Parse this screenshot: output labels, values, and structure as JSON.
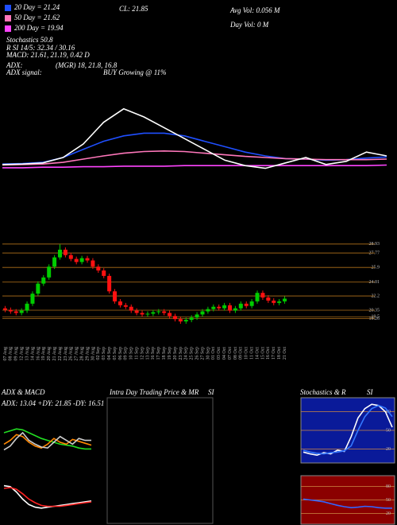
{
  "chart_data": [
    {
      "type": "line",
      "annotations": [
        "CL: 21.85",
        "Avg Vol: 0.056  M",
        "Day Vol: 0  M",
        "Stochastics 50.8",
        "R   SI 14/5: 32.34 / 30.16",
        "MACD: 21.61, 21.19, 0.42  D",
        "ADX:",
        "(MGR) 18, 21.8, 16.8",
        "ADX  signal:",
        "BUY Growing @ 11%"
      ],
      "ylim": [
        19,
        31.5
      ],
      "series": [
        {
          "name": "20 Day = 21.24",
          "color": "#1f4fff",
          "values": [
            20.3,
            20.4,
            20.6,
            21.5,
            23,
            24.5,
            25.5,
            26,
            26,
            25.5,
            24.5,
            23.5,
            22.5,
            21.8,
            21.3,
            21.2,
            21,
            21.1,
            21.4,
            21.6
          ]
        },
        {
          "name": "50 Day = 21.62",
          "color": "#ff77bb",
          "values": [
            20.1,
            20.2,
            20.3,
            20.6,
            21.2,
            21.8,
            22.3,
            22.6,
            22.7,
            22.6,
            22.3,
            22,
            21.7,
            21.5,
            21.3,
            21.2,
            21.1,
            21.1,
            21.1,
            21.2
          ]
        },
        {
          "name": "200 Day = 19.94",
          "color": "#ff44ff",
          "values": [
            19.6,
            19.6,
            19.7,
            19.7,
            19.8,
            19.8,
            19.9,
            19.9,
            19.9,
            20,
            20,
            20,
            20,
            20,
            20,
            20,
            20,
            20,
            20,
            20.1
          ]
        },
        {
          "color": "#ffffff",
          "values": [
            20.2,
            20.3,
            20.5,
            21.5,
            24,
            28,
            30.5,
            29,
            27,
            25,
            23,
            21,
            20,
            19.5,
            20.5,
            21.5,
            20.2,
            20.8,
            22.5,
            21.8
          ]
        }
      ]
    },
    {
      "type": "candlestick",
      "categories": [
        "07 Aug",
        "08 Aug",
        "09 Aug",
        "12 Aug",
        "13 Aug",
        "14 Aug",
        "16 Aug",
        "19 Aug",
        "20 Aug",
        "21 Aug",
        "22 Aug",
        "23 Aug",
        "26 Aug",
        "27 Aug",
        "28 Aug",
        "29 Aug",
        "30 Aug",
        "02 Sep",
        "03 Sep",
        "04 Sep",
        "05 Sep",
        "06 Sep",
        "09 Sep",
        "10 Sep",
        "11 Sep",
        "12 Sep",
        "13 Sep",
        "16 Sep",
        "17 Sep",
        "18 Sep",
        "19 Sep",
        "20 Sep",
        "23 Sep",
        "24 Sep",
        "25 Sep",
        "26 Sep",
        "27 Sep",
        "30 Sep",
        "01 Oct",
        "03 Oct",
        "04 Oct",
        "07 Oct",
        "08 Oct",
        "09 Oct",
        "10 Oct",
        "11 Oct",
        "14 Oct",
        "15 Oct",
        "16 Oct",
        "17 Oct",
        "18 Oct",
        "21 Oct"
      ],
      "open": [
        20.6,
        20.4,
        20.2,
        20.0,
        20.3,
        21.2,
        22.5,
        23.8,
        24.6,
        26.0,
        27.2,
        28.2,
        27.5,
        27.0,
        26.6,
        27.1,
        26.8,
        26.0,
        25.5,
        24.8,
        22.8,
        21.5,
        21.0,
        20.8,
        20.3,
        20.0,
        19.8,
        19.9,
        20.1,
        20.2,
        20.0,
        19.6,
        19.2,
        18.9,
        19.1,
        19.4,
        19.8,
        20.2,
        20.5,
        20.8,
        20.6,
        21.0,
        20.3,
        20.6,
        21.2,
        20.9,
        21.5,
        22.6,
        22.0,
        21.6,
        21.3,
        21.5
      ],
      "high": [
        20.9,
        20.7,
        20.5,
        20.6,
        21.5,
        22.8,
        24.1,
        24.9,
        26.3,
        27.5,
        28.9,
        28.5,
        27.8,
        27.3,
        27.4,
        27.4,
        27.1,
        26.3,
        25.8,
        25.1,
        23.1,
        21.8,
        21.3,
        21.1,
        20.6,
        20.3,
        20.2,
        20.4,
        20.5,
        20.5,
        20.3,
        19.9,
        19.5,
        19.4,
        19.7,
        20.1,
        20.5,
        20.8,
        21.1,
        21.1,
        21.3,
        21.3,
        20.9,
        21.5,
        21.5,
        21.8,
        22.9,
        22.9,
        22.3,
        21.9,
        21.8,
        22.15
      ],
      "low": [
        20.1,
        19.9,
        19.7,
        19.7,
        20.0,
        20.9,
        22.2,
        23.5,
        24.3,
        25.7,
        26.9,
        27.2,
        26.7,
        26.3,
        26.3,
        26.5,
        25.7,
        25.2,
        24.5,
        22.5,
        21.2,
        20.7,
        20.5,
        20.0,
        19.7,
        19.5,
        19.5,
        19.6,
        19.8,
        19.7,
        19.3,
        18.9,
        18.6,
        18.6,
        18.8,
        19.1,
        19.5,
        19.9,
        20.2,
        20.3,
        20.3,
        20.0,
        20.0,
        20.3,
        20.6,
        20.6,
        21.2,
        21.7,
        21.3,
        21.0,
        21.0,
        21.2
      ],
      "close": [
        20.4,
        20.2,
        20.0,
        20.3,
        21.2,
        22.5,
        23.8,
        24.6,
        26.0,
        27.2,
        28.2,
        27.5,
        27.0,
        26.6,
        27.1,
        26.8,
        26.0,
        25.5,
        24.8,
        22.8,
        21.5,
        21.0,
        20.8,
        20.3,
        20.0,
        19.8,
        19.9,
        20.1,
        20.2,
        20.0,
        19.6,
        19.2,
        18.9,
        19.1,
        19.4,
        19.8,
        20.2,
        20.5,
        20.8,
        20.6,
        21.0,
        20.3,
        20.6,
        21.2,
        20.9,
        21.5,
        22.6,
        22.0,
        21.6,
        21.3,
        21.5,
        21.85
      ],
      "up_color": "#00cc00",
      "down_color": "#ff1111",
      "level_color": "#b0701a",
      "ylim": [
        16.23,
        29.63
      ],
      "yticks": [
        28.93,
        27.77,
        25.9,
        24.01,
        22.2,
        20.35,
        19.5,
        19.26
      ]
    },
    {
      "type": "line",
      "title": "ADX  & MACD",
      "subtitle": "ADX: 13.04  +DY: 21.85  -DY: 16.51",
      "ylim": [
        0,
        50
      ],
      "series": [
        {
          "color": "#22dd22",
          "values": [
            30,
            32,
            34,
            33,
            30,
            27,
            24,
            22,
            20,
            18,
            17,
            16,
            14,
            13,
            13
          ]
        },
        {
          "color": "#ff8800",
          "values": [
            18,
            22,
            28,
            26,
            20,
            16,
            14,
            18,
            24,
            20,
            18,
            23,
            21,
            19,
            17
          ]
        },
        {
          "color": "#cccccc",
          "values": [
            12,
            16,
            24,
            30,
            22,
            18,
            15,
            14,
            20,
            26,
            22,
            18,
            24,
            22,
            22
          ]
        }
      ]
    },
    {
      "type": "line",
      "ylim": [
        -2,
        2
      ],
      "series": [
        {
          "color": "#ffffff",
          "values": [
            1.5,
            1.4,
            0.8,
            0,
            -0.6,
            -0.9,
            -1,
            -0.9,
            -0.8,
            -0.7,
            -0.6,
            -0.5,
            -0.4,
            -0.3,
            -0.2
          ]
        },
        {
          "color": "#ff2222",
          "values": [
            1.2,
            1.3,
            1.1,
            0.6,
            0,
            -0.4,
            -0.7,
            -0.8,
            -0.8,
            -0.8,
            -0.7,
            -0.6,
            -0.5,
            -0.4,
            -0.3
          ]
        }
      ]
    },
    {
      "type": "box",
      "title": "Intra Day Trading Price  & MR",
      "subtitle": "SI"
    },
    {
      "type": "line",
      "title": "Stochastics & R",
      "subtitle": "SI",
      "background": "#0a1a99",
      "ylim": [
        0,
        100
      ],
      "yticks": [
        20,
        50,
        80
      ],
      "series": [
        {
          "color": "#ffffff",
          "values": [
            15,
            12,
            10,
            14,
            12,
            18,
            16,
            40,
            70,
            85,
            92,
            90,
            80,
            55
          ]
        },
        {
          "color": "#3377ff",
          "values": [
            18,
            15,
            13,
            12,
            14,
            15,
            17,
            25,
            50,
            72,
            85,
            90,
            86,
            72
          ]
        }
      ]
    },
    {
      "type": "line",
      "background": "#8b0000",
      "ylim": [
        0,
        100
      ],
      "yticks": [
        20,
        50,
        80
      ],
      "series": [
        {
          "color": "#3366ff",
          "values": [
            52,
            50,
            48,
            46,
            42,
            38,
            35,
            33,
            34,
            36,
            35,
            33,
            32,
            32
          ]
        }
      ]
    }
  ]
}
